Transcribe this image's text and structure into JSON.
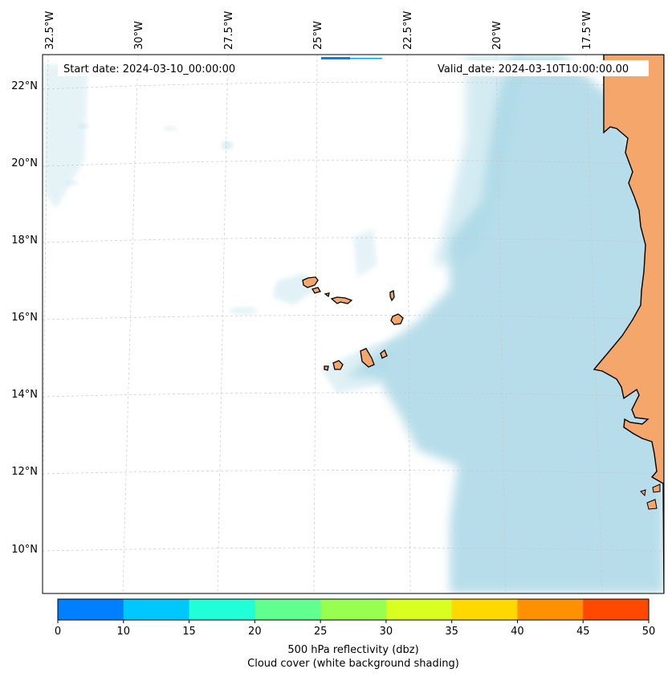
{
  "map": {
    "start_label": "Start date: 2024-03-10_00:00:00",
    "valid_label": "Valid_date: 2024-03-10T10:00:00.00",
    "lon_labels": [
      "32.5°W",
      "30°W",
      "27.5°W",
      "25°W",
      "22.5°W",
      "20°W",
      "17.5°W"
    ],
    "lat_labels": [
      "22°N",
      "20°N",
      "18°N",
      "16°N",
      "14°N",
      "12°N",
      "10°N"
    ],
    "colors": {
      "land": "#f5a66b",
      "cloud": "#aad8e6",
      "coast": "#000000"
    }
  },
  "colorbar": {
    "ticks": [
      "0",
      "10",
      "15",
      "20",
      "25",
      "30",
      "35",
      "40",
      "45",
      "50"
    ],
    "colors": [
      "#0080ff",
      "#00c8ff",
      "#20ffd8",
      "#60ff90",
      "#98ff50",
      "#d8ff20",
      "#ffd800",
      "#ff9000",
      "#ff4800"
    ],
    "label_line1": "500 hPa reflectivity (dbz)",
    "label_line2": "Cloud cover (white background shading)"
  }
}
